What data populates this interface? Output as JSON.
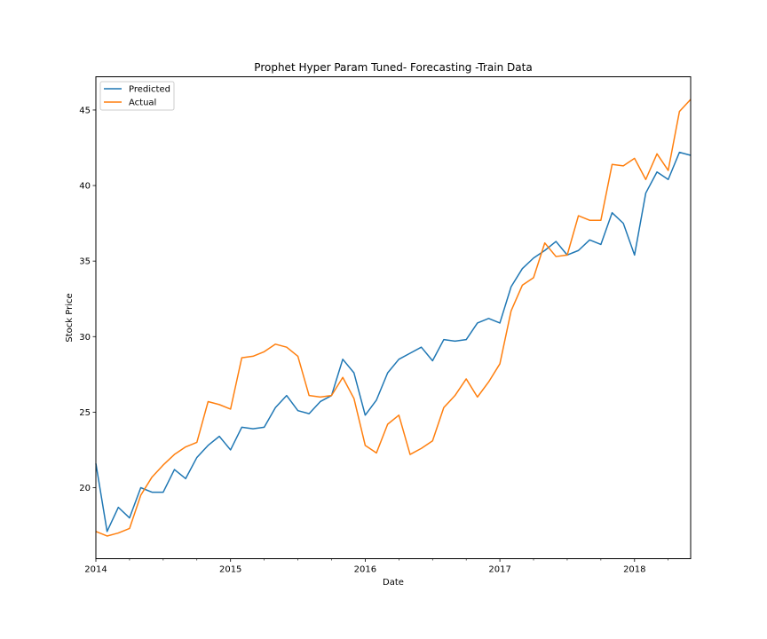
{
  "chart_data": {
    "type": "line",
    "title": "Prophet Hyper Param Tuned- Forecasting -Train Data",
    "xlabel": "Date",
    "ylabel": "Stock Price",
    "x_major_ticks": [
      "2014",
      "2015",
      "2016",
      "2017",
      "2018"
    ],
    "x_minor_ticks_per_year": 4,
    "xlim": [
      "2014-01",
      "2018-06"
    ],
    "y_ticks": [
      20,
      25,
      30,
      35,
      40,
      45
    ],
    "ylim": [
      15.3,
      47.2
    ],
    "grid": false,
    "legend": {
      "position": "top-left"
    },
    "x": [
      "2014-01",
      "2014-02",
      "2014-03",
      "2014-04",
      "2014-05",
      "2014-06",
      "2014-07",
      "2014-08",
      "2014-09",
      "2014-10",
      "2014-11",
      "2014-12",
      "2015-01",
      "2015-02",
      "2015-03",
      "2015-04",
      "2015-05",
      "2015-06",
      "2015-07",
      "2015-08",
      "2015-09",
      "2015-10",
      "2015-11",
      "2015-12",
      "2016-01",
      "2016-02",
      "2016-03",
      "2016-04",
      "2016-05",
      "2016-06",
      "2016-07",
      "2016-08",
      "2016-09",
      "2016-10",
      "2016-11",
      "2016-12",
      "2017-01",
      "2017-02",
      "2017-03",
      "2017-04",
      "2017-05",
      "2017-06",
      "2017-07",
      "2017-08",
      "2017-09",
      "2017-10",
      "2017-11",
      "2017-12",
      "2018-01",
      "2018-02",
      "2018-03",
      "2018-04",
      "2018-05",
      "2018-06"
    ],
    "series": [
      {
        "name": "Predicted",
        "color": "#1f77b4",
        "values": [
          21.6,
          17.1,
          18.7,
          18.0,
          20.0,
          19.7,
          19.7,
          21.2,
          20.6,
          22.0,
          22.8,
          23.4,
          22.5,
          24.0,
          23.9,
          24.0,
          25.3,
          26.1,
          25.1,
          24.9,
          25.7,
          26.1,
          28.5,
          27.6,
          24.8,
          25.8,
          27.6,
          28.5,
          28.9,
          29.3,
          28.4,
          29.8,
          29.7,
          29.8,
          30.9,
          31.2,
          30.9,
          33.3,
          34.5,
          35.2,
          35.7,
          36.3,
          35.4,
          35.7,
          36.4,
          36.1,
          38.2,
          37.5,
          35.4,
          39.5,
          40.9,
          40.4,
          42.2,
          42.0
        ]
      },
      {
        "name": "Actual",
        "color": "#ff7f0e",
        "values": [
          17.1,
          16.8,
          17.0,
          17.3,
          19.5,
          20.7,
          21.5,
          22.2,
          22.7,
          23.0,
          25.7,
          25.5,
          25.2,
          28.6,
          28.7,
          29.0,
          29.5,
          29.3,
          28.7,
          26.1,
          26.0,
          26.1,
          27.3,
          25.9,
          22.8,
          22.3,
          24.2,
          24.8,
          22.2,
          22.6,
          23.1,
          25.3,
          26.1,
          27.2,
          26.0,
          27.0,
          28.2,
          31.7,
          33.4,
          33.9,
          36.2,
          35.3,
          35.4,
          38.0,
          37.7,
          37.7,
          41.4,
          41.3,
          41.8,
          40.4,
          42.1,
          41.0,
          44.9,
          45.7
        ]
      }
    ]
  }
}
